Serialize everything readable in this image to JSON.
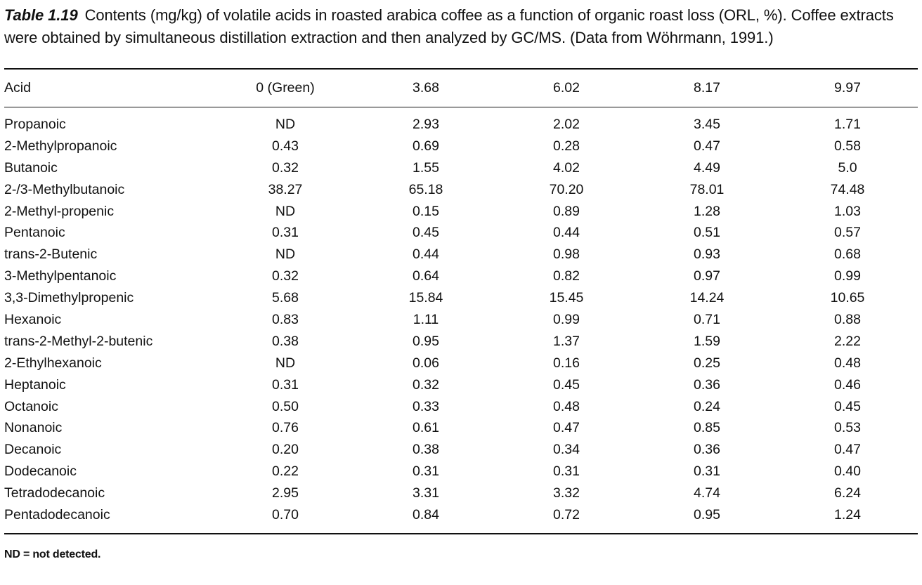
{
  "caption": {
    "label": "Table 1.19",
    "text": "Contents (mg/kg) of volatile acids in roasted arabica coffee as a function of organic roast loss (ORL, %). Coffee extracts were obtained by simultaneous distillation extraction and then analyzed by GC/MS. (Data from Wöhrmann, 1991.)"
  },
  "table": {
    "headers": [
      "Acid",
      "0 (Green)",
      "3.68",
      "6.02",
      "8.17",
      "9.97"
    ],
    "rows": [
      [
        "Propanoic",
        "ND",
        "2.93",
        "2.02",
        "3.45",
        "1.71"
      ],
      [
        "2-Methylpropanoic",
        "0.43",
        "0.69",
        "0.28",
        "0.47",
        "0.58"
      ],
      [
        "Butanoic",
        "0.32",
        "1.55",
        "4.02",
        "4.49",
        "5.0"
      ],
      [
        "2-/3-Methylbutanoic",
        "38.27",
        "65.18",
        "70.20",
        "78.01",
        "74.48"
      ],
      [
        "2-Methyl-propenic",
        "ND",
        "0.15",
        "0.89",
        "1.28",
        "1.03"
      ],
      [
        "Pentanoic",
        "0.31",
        "0.45",
        "0.44",
        "0.51",
        "0.57"
      ],
      [
        "trans-2-Butenic",
        "ND",
        "0.44",
        "0.98",
        "0.93",
        "0.68"
      ],
      [
        "3-Methylpentanoic",
        "0.32",
        "0.64",
        "0.82",
        "0.97",
        "0.99"
      ],
      [
        "3,3-Dimethylpropenic",
        "5.68",
        "15.84",
        "15.45",
        "14.24",
        "10.65"
      ],
      [
        "Hexanoic",
        "0.83",
        "1.11",
        "0.99",
        "0.71",
        "0.88"
      ],
      [
        "trans-2-Methyl-2-butenic",
        "0.38",
        "0.95",
        "1.37",
        "1.59",
        "2.22"
      ],
      [
        "2-Ethylhexanoic",
        "ND",
        "0.06",
        "0.16",
        "0.25",
        "0.48"
      ],
      [
        "Heptanoic",
        "0.31",
        "0.32",
        "0.45",
        "0.36",
        "0.46"
      ],
      [
        "Octanoic",
        "0.50",
        "0.33",
        "0.48",
        "0.24",
        "0.45"
      ],
      [
        "Nonanoic",
        "0.76",
        "0.61",
        "0.47",
        "0.85",
        "0.53"
      ],
      [
        "Decanoic",
        "0.20",
        "0.38",
        "0.34",
        "0.36",
        "0.47"
      ],
      [
        "Dodecanoic",
        "0.22",
        "0.31",
        "0.31",
        "0.31",
        "0.40"
      ],
      [
        "Tetradodecanoic",
        "2.95",
        "3.31",
        "3.32",
        "4.74",
        "6.24"
      ],
      [
        "Pentadodecanoic",
        "0.70",
        "0.84",
        "0.72",
        "0.95",
        "1.24"
      ]
    ]
  },
  "footnote": "ND = not detected."
}
